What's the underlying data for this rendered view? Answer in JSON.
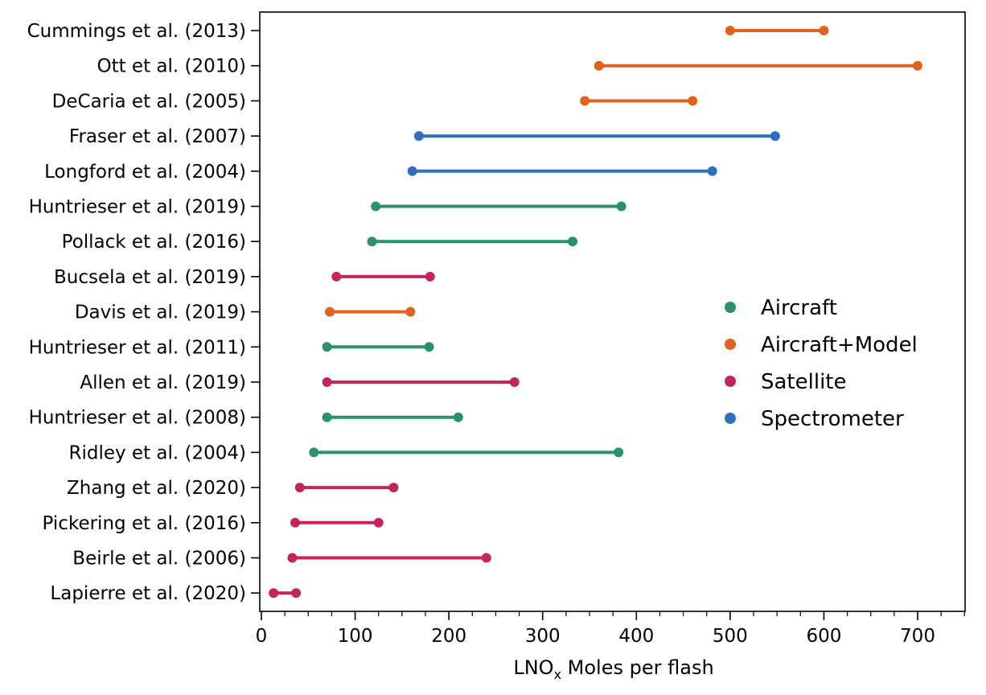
{
  "chart_data": {
    "type": "dumbbell",
    "xlabel_main": "LNO",
    "xlabel_sub": "x",
    "xlabel_rest": " Moles per flash",
    "xlim": [
      0,
      750
    ],
    "x_major_ticks": [
      0,
      100,
      200,
      300,
      400,
      500,
      600,
      700
    ],
    "x_minor_step": 25,
    "grid": false,
    "legend_position": "right",
    "categories": [
      {
        "name": "Aircraft",
        "color": "#2a9070"
      },
      {
        "name": "Aircraft+Model",
        "color": "#e0621f"
      },
      {
        "name": "Satellite",
        "color": "#c2255f"
      },
      {
        "name": "Spectrometer",
        "color": "#2e6fbf"
      }
    ],
    "studies": [
      {
        "label": "Cummings et al. (2013)",
        "low": 500,
        "high": 600,
        "category": "Aircraft+Model"
      },
      {
        "label": "Ott et al. (2010)",
        "low": 360,
        "high": 700,
        "category": "Aircraft+Model"
      },
      {
        "label": "DeCaria et al. (2005)",
        "low": 345,
        "high": 460,
        "category": "Aircraft+Model"
      },
      {
        "label": "Fraser et al. (2007)",
        "low": 168,
        "high": 548,
        "category": "Spectrometer"
      },
      {
        "label": "Longford et al. (2004)",
        "low": 161,
        "high": 481,
        "category": "Spectrometer"
      },
      {
        "label": "Huntrieser et al. (2019)",
        "low": 122,
        "high": 384,
        "category": "Aircraft"
      },
      {
        "label": "Pollack et al. (2016)",
        "low": 118,
        "high": 332,
        "category": "Aircraft"
      },
      {
        "label": "Bucsela et al. (2019)",
        "low": 80,
        "high": 180,
        "category": "Satellite"
      },
      {
        "label": "Davis et al. (2019)",
        "low": 73,
        "high": 159,
        "category": "Aircraft+Model"
      },
      {
        "label": "Huntrieser et al. (2011)",
        "low": 70,
        "high": 179,
        "category": "Aircraft"
      },
      {
        "label": "Allen et al. (2019)",
        "low": 70,
        "high": 270,
        "category": "Satellite"
      },
      {
        "label": "Huntrieser et al. (2008)",
        "low": 70,
        "high": 210,
        "category": "Aircraft"
      },
      {
        "label": "Ridley et al. (2004)",
        "low": 56,
        "high": 381,
        "category": "Aircraft"
      },
      {
        "label": "Zhang et al. (2020)",
        "low": 41,
        "high": 141,
        "category": "Satellite"
      },
      {
        "label": "Pickering et al. (2016)",
        "low": 36,
        "high": 125,
        "category": "Satellite"
      },
      {
        "label": "Beirle et al. (2006)",
        "low": 33,
        "high": 240,
        "category": "Satellite"
      },
      {
        "label": "Lapierre et al. (2020)",
        "low": 13,
        "high": 37,
        "category": "Satellite"
      }
    ]
  }
}
